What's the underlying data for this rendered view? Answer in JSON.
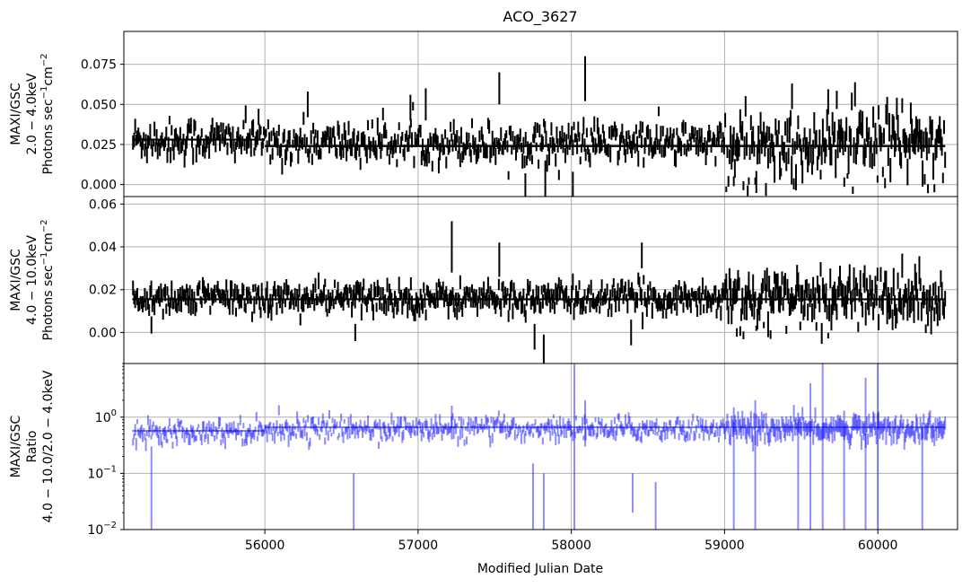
{
  "title": "ACO_3627",
  "xlabel": "Modified Julian Date",
  "colors": {
    "panel_lines": "#000000",
    "ratio": "#0000ff",
    "grid": "#b0b0b0"
  },
  "chart_data": [
    {
      "type": "scatter",
      "panel": "top",
      "title": "ACO_3627",
      "ylabel_lines": [
        "MAXI/GSC",
        "2.0 − 4.0keV",
        "Photons sec⁻¹cm⁻²"
      ],
      "xlim": [
        55080,
        60520
      ],
      "ylim": [
        -0.0075,
        0.0955
      ],
      "yticks": [
        0.0,
        0.025,
        0.05,
        0.075
      ],
      "ytick_labels": [
        "0.000",
        "0.025",
        "0.050",
        "0.075"
      ],
      "grid": true,
      "errorbar_color": "#000000",
      "series": [
        {
          "mjd_start": 55140,
          "mjd_step": 7,
          "count": 765,
          "base_pre": 0.028,
          "base_post": 0.026,
          "scatter": 0.006,
          "err_typical": 0.004
        }
      ],
      "model_steps": [
        {
          "x": [
            55135,
            56000
          ],
          "y": 0.028
        },
        {
          "x": [
            56000,
            60440
          ],
          "y": 0.024
        }
      ],
      "notable_points": [
        {
          "x": 56280,
          "y": 0.05,
          "err": 0.008
        },
        {
          "x": 56950,
          "y": 0.048,
          "err": 0.008
        },
        {
          "x": 57050,
          "y": 0.05,
          "err": 0.01
        },
        {
          "x": 57530,
          "y": 0.06,
          "err": 0.01
        },
        {
          "x": 57700,
          "y": -0.003,
          "err": 0.01
        },
        {
          "x": 57830,
          "y": 0.003,
          "err": 0.012
        },
        {
          "x": 58010,
          "y": 0.0,
          "err": 0.008
        },
        {
          "x": 58090,
          "y": 0.066,
          "err": 0.014
        },
        {
          "x": 59440,
          "y": 0.055,
          "err": 0.008
        },
        {
          "x": 59270,
          "y": -0.003,
          "err": 0.004
        },
        {
          "x": 59060,
          "y": 0.002,
          "err": 0.003
        }
      ]
    },
    {
      "type": "scatter",
      "panel": "middle",
      "ylabel_lines": [
        "MAXI/GSC",
        "4.0 − 10.0keV",
        "Photons sec⁻¹cm⁻²"
      ],
      "xlim": [
        55080,
        60520
      ],
      "ylim": [
        -0.0145,
        0.0635
      ],
      "yticks": [
        0.0,
        0.02,
        0.04,
        0.06
      ],
      "ytick_labels": [
        "0.00",
        "0.02",
        "0.04",
        "0.06"
      ],
      "grid": true,
      "errorbar_color": "#000000",
      "series": [
        {
          "mjd_start": 55140,
          "mjd_step": 7,
          "count": 765,
          "base": 0.016,
          "scatter": 0.0035,
          "err_typical": 0.003
        }
      ],
      "model_steps": [
        {
          "x": [
            55135,
            60440
          ],
          "y": 0.0155
        }
      ],
      "notable_points": [
        {
          "x": 55260,
          "y": 0.0035,
          "err": 0.004
        },
        {
          "x": 56590,
          "y": 0.0,
          "err": 0.004
        },
        {
          "x": 57220,
          "y": 0.04,
          "err": 0.012
        },
        {
          "x": 57530,
          "y": 0.034,
          "err": 0.008
        },
        {
          "x": 57760,
          "y": -0.002,
          "err": 0.006
        },
        {
          "x": 57820,
          "y": -0.008,
          "err": 0.007
        },
        {
          "x": 58390,
          "y": 0.0,
          "err": 0.006
        },
        {
          "x": 58460,
          "y": 0.036,
          "err": 0.006
        },
        {
          "x": 59080,
          "y": 0.0,
          "err": 0.002
        },
        {
          "x": 59300,
          "y": -0.001,
          "err": 0.002
        }
      ]
    },
    {
      "type": "scatter",
      "panel": "bottom",
      "ylabel_lines": [
        "MAXI/GSC",
        "Ratio",
        "4.0 − 10.0/2.0 − 4.0keV"
      ],
      "xlim": [
        55080,
        60520
      ],
      "yscale": "log",
      "ylim": [
        0.01,
        9.0
      ],
      "yticks": [
        0.01,
        0.1,
        1.0
      ],
      "ytick_labels": [
        "10",
        "10",
        "10"
      ],
      "ytick_exponents": [
        "−2",
        "−1",
        "0"
      ],
      "grid": true,
      "errorbar_color": "#0000ff",
      "series": [
        {
          "mjd_start": 55140,
          "mjd_step": 7,
          "count": 765,
          "base": 0.62,
          "scatter_factor": 1.25
        }
      ],
      "model_steps": [
        {
          "x": [
            55135,
            56000
          ],
          "y": 0.57
        },
        {
          "x": [
            56000,
            60440
          ],
          "y": 0.66
        }
      ],
      "notable_points": [
        {
          "x": 55260,
          "y": 0.25,
          "lo": 0.01,
          "hi": 0.3
        },
        {
          "x": 56580,
          "y": 0.06,
          "lo": 0.01,
          "hi": 0.1
        },
        {
          "x": 57220,
          "y": 1.0,
          "lo": 0.4,
          "hi": 1.6
        },
        {
          "x": 57750,
          "y": 0.08,
          "lo": 0.01,
          "hi": 0.15
        },
        {
          "x": 57820,
          "y": 0.06,
          "lo": 0.01,
          "hi": 0.1
        },
        {
          "x": 58020,
          "y": 2.0,
          "lo": 0.01,
          "hi": 9.0
        },
        {
          "x": 58090,
          "y": 1.0,
          "lo": 0.3,
          "hi": 2.0
        },
        {
          "x": 58400,
          "y": 0.05,
          "lo": 0.02,
          "hi": 0.1
        },
        {
          "x": 58550,
          "y": 0.05,
          "lo": 0.01,
          "hi": 0.07
        },
        {
          "x": 59060,
          "y": 0.2,
          "lo": 0.01,
          "hi": 1.5
        },
        {
          "x": 59200,
          "y": 0.5,
          "lo": 0.01,
          "hi": 2.0
        },
        {
          "x": 59480,
          "y": 0.3,
          "lo": 0.01,
          "hi": 1.2
        },
        {
          "x": 59560,
          "y": 0.5,
          "lo": 0.01,
          "hi": 4.0
        },
        {
          "x": 59640,
          "y": 1.0,
          "lo": 0.01,
          "hi": 9.0
        },
        {
          "x": 59780,
          "y": 0.3,
          "lo": 0.01,
          "hi": 1.3
        },
        {
          "x": 59920,
          "y": 0.5,
          "lo": 0.01,
          "hi": 5.0
        },
        {
          "x": 60000,
          "y": 1.0,
          "lo": 0.01,
          "hi": 9.0
        },
        {
          "x": 60290,
          "y": 0.2,
          "lo": 0.01,
          "hi": 0.8
        }
      ]
    }
  ],
  "xaxis": {
    "ticks": [
      56000,
      57000,
      58000,
      59000,
      60000
    ],
    "tick_labels": [
      "56000",
      "57000",
      "58000",
      "59000",
      "60000"
    ]
  }
}
